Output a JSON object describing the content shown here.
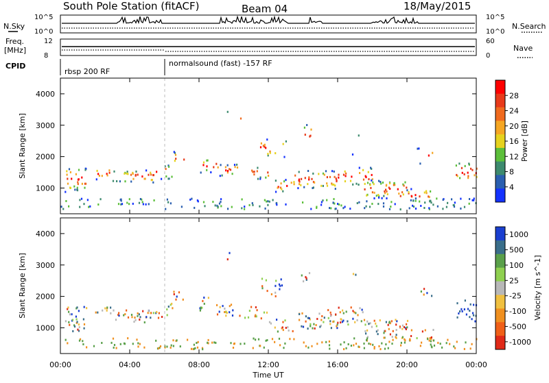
{
  "header": {
    "station": "South Pole Station (fitACF)",
    "beam": "Beam 04",
    "date": "18/May/2015"
  },
  "top_panels": {
    "nsky_label": "N.Sky",
    "nsky_ticks": [
      "10^5",
      "10^0"
    ],
    "nsearch_label": "N.Search",
    "nsearch_ticks": [
      "10^5",
      "10^0"
    ],
    "freq_label_line1": "Freq.",
    "freq_label_line2": "[MHz]",
    "freq_ticks": [
      "12",
      "8"
    ],
    "nave_label": "Nave",
    "nave_ticks": [
      "60",
      "0"
    ],
    "cpid_label": "CPID",
    "cpid_segments": [
      "rbsp 200 RF",
      "normalsound (fast) -157 RF"
    ]
  },
  "chart_data": [
    {
      "type": "heatmap",
      "title": "",
      "xlabel": "",
      "ylabel": "Slant Range [km]",
      "x_ticks": [
        "00:00",
        "04:00",
        "08:00",
        "12:00",
        "16:00",
        "20:00",
        "00:00"
      ],
      "xlim": [
        0,
        24
      ],
      "y_ticks": [
        "1000",
        "2000",
        "3000",
        "4000"
      ],
      "ylim": [
        180,
        4500
      ],
      "colorbar": {
        "label": "Power [dB]",
        "ticks": [
          "4",
          "8",
          "12",
          "16",
          "20",
          "24",
          "28"
        ],
        "range": [
          0,
          32
        ],
        "colors": [
          "#1432ff",
          "#2a5fb0",
          "#3d8a6e",
          "#5cbf3a",
          "#e6d21e",
          "#f5a623",
          "#f06a1e",
          "#e83a1a",
          "#ff0000"
        ]
      }
    },
    {
      "type": "heatmap",
      "title": "",
      "xlabel": "Time UT",
      "ylabel": "Slant Range [km]",
      "x_ticks": [
        "00:00",
        "04:00",
        "08:00",
        "12:00",
        "16:00",
        "20:00",
        "00:00"
      ],
      "xlim": [
        0,
        24
      ],
      "y_ticks": [
        "1000",
        "2000",
        "3000",
        "4000"
      ],
      "ylim": [
        180,
        4500
      ],
      "colorbar": {
        "label": "Velocity [m s^-1]",
        "ticks": [
          "1000",
          "500",
          "100",
          "25",
          "-25",
          "-100",
          "-500",
          "-1000"
        ],
        "colors": [
          "#1a3fd0",
          "#3a6e8a",
          "#5aa04a",
          "#8fd050",
          "#b8b8b8",
          "#f0c040",
          "#f09020",
          "#f06018",
          "#e02a18"
        ]
      }
    }
  ],
  "mode_change_ut": 6.0
}
